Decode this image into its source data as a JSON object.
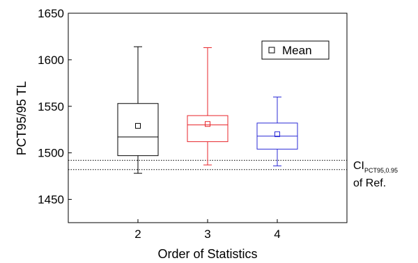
{
  "chart_data": {
    "type": "box",
    "xlabel": "Order of Statistics",
    "ylabel": "PCT95/95 TL",
    "ylim": [
      1425,
      1650
    ],
    "yticks": [
      1450,
      1500,
      1550,
      1600,
      1650
    ],
    "categories": [
      "2",
      "3",
      "4"
    ],
    "boxes": [
      {
        "category": "2",
        "color": "#000000",
        "min": 1478,
        "q1": 1497,
        "median": 1517,
        "q3": 1553,
        "max": 1614,
        "mean": 1529
      },
      {
        "category": "3",
        "color": "#e8262b",
        "min": 1487,
        "q1": 1512,
        "median": 1530,
        "q3": 1540,
        "max": 1613,
        "mean": 1531
      },
      {
        "category": "4",
        "color": "#2b2bd6",
        "min": 1486,
        "q1": 1504,
        "median": 1518,
        "q3": 1532,
        "max": 1560,
        "mean": 1520
      }
    ],
    "legend": {
      "label": "Mean",
      "position": "top-right"
    },
    "reference_lines": [
      1492,
      1482
    ],
    "reference_label": {
      "main": "CI",
      "subscript": "PCT95,0.95",
      "line2": "of Ref."
    }
  }
}
